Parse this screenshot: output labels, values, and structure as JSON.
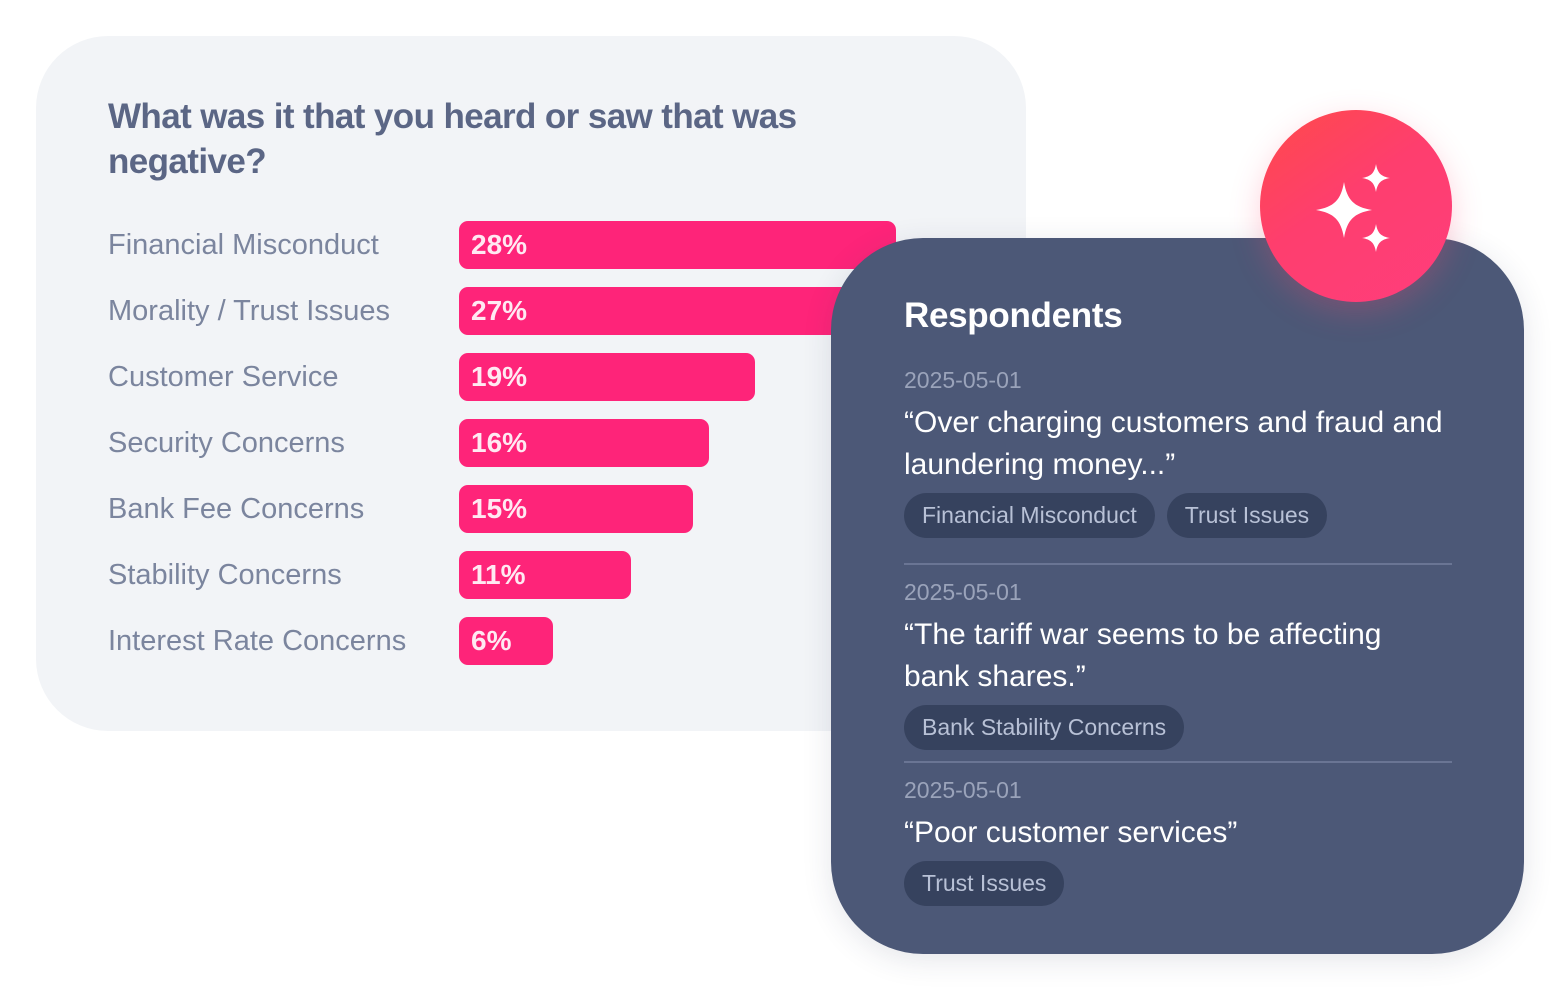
{
  "survey": {
    "question": "What was it that you heard or saw that was negative?"
  },
  "chart_data": {
    "type": "bar",
    "orientation": "horizontal",
    "title": "What was it that you heard or saw that was negative?",
    "categories": [
      "Financial Misconduct",
      "Morality / Trust Issues",
      "Customer Service",
      "Security Concerns",
      "Bank Fee Concerns",
      "Stability Concerns",
      "Interest Rate Concerns"
    ],
    "values": [
      28,
      27,
      19,
      16,
      15,
      11,
      6
    ],
    "value_labels": [
      "28%",
      "27%",
      "19%",
      "16%",
      "15%",
      "11%",
      "6%"
    ],
    "unit": "%",
    "xlabel": "",
    "ylabel": "",
    "grid": false,
    "legend": "none",
    "bar_color": "#fe2479"
  },
  "respondents": {
    "title": "Respondents",
    "entries": [
      {
        "date": "2025-05-01",
        "quote": "“Over charging customers and fraud and laundering money...”",
        "tags": [
          "Financial Misconduct",
          "Trust Issues"
        ]
      },
      {
        "date": "2025-05-01",
        "quote": "“The tariff war seems to be affecting bank shares.”",
        "tags": [
          "Bank Stability Concerns"
        ]
      },
      {
        "date": "2025-05-01",
        "quote": "“Poor customer services”",
        "tags": [
          "Trust Issues"
        ]
      }
    ]
  },
  "badge": {
    "icon": "sparkles-icon"
  },
  "colors": {
    "accent": "#fe2479",
    "panel": "#4c5877",
    "card": "#f2f4f7",
    "tag_bg": "#36425e"
  }
}
